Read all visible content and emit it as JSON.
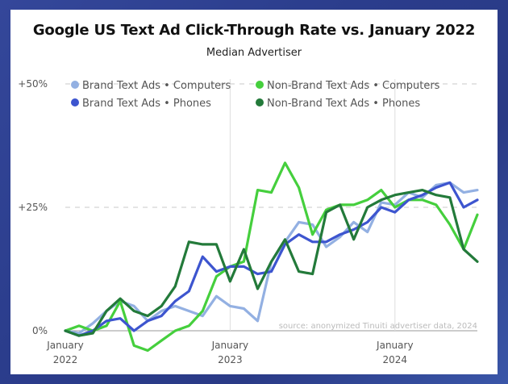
{
  "colors": {
    "brand_computers": "#93b0e2",
    "brand_phones": "#3d55cf",
    "nonbrand_computers": "#45cf3d",
    "nonbrand_phones": "#237a3a"
  },
  "chart_data": {
    "type": "line",
    "title": "Google US Text Ad Click-Through Rate vs. January 2022",
    "subtitle": "Median Advertiser",
    "xlabel": "",
    "ylabel": "",
    "ylim": [
      0,
      50
    ],
    "x_ticks": [
      {
        "index": 0,
        "line1": "January",
        "line2": "2022"
      },
      {
        "index": 12,
        "line1": "January",
        "line2": "2023"
      },
      {
        "index": 24,
        "line1": "January",
        "line2": "2024"
      }
    ],
    "y_ticks": [
      {
        "value": 0,
        "label": "0%"
      },
      {
        "value": 25,
        "label": "+25%"
      },
      {
        "value": 50,
        "label": "+50%"
      }
    ],
    "source": "source: anonymized Tinuiti advertiser data, 2024",
    "legend_position": "top-left",
    "series": [
      {
        "name": "Brand Text Ads • Computers",
        "color_key": "brand_computers",
        "values": [
          0,
          -0.5,
          1.5,
          4,
          6,
          5,
          2,
          4,
          5,
          4,
          3,
          7,
          5,
          4.5,
          2,
          14,
          18,
          22,
          21.5,
          17,
          19,
          22,
          20,
          26,
          25.5,
          28,
          27,
          29.5,
          30,
          28,
          28.5
        ]
      },
      {
        "name": "Non-Brand Text Ads • Computers",
        "color_key": "nonbrand_computers",
        "values": [
          0,
          1,
          0,
          1,
          6,
          -3,
          -4,
          -2,
          0,
          1,
          4,
          11,
          13,
          14,
          28.5,
          28,
          34,
          29,
          19.5,
          24.5,
          25.5,
          25.5,
          26.5,
          28.5,
          25,
          26.5,
          26.5,
          25.5,
          21.5,
          16.5,
          23.5
        ]
      },
      {
        "name": "Brand Text Ads • Phones",
        "color_key": "brand_phones",
        "values": [
          0,
          -1,
          0,
          2,
          2.5,
          0,
          2,
          3,
          6,
          8,
          15,
          12,
          13,
          13,
          11.5,
          12,
          17.5,
          19.5,
          18,
          18,
          19.5,
          20.5,
          22,
          25,
          24,
          26.5,
          27.5,
          29,
          30,
          25,
          26.5
        ]
      },
      {
        "name": "Non-Brand Text Ads • Phones",
        "color_key": "nonbrand_phones",
        "values": [
          0,
          -1,
          -0.5,
          4,
          6.5,
          4,
          3,
          5,
          9,
          18,
          17.5,
          17.5,
          10,
          16.5,
          8.5,
          14,
          18.5,
          12,
          11.5,
          24,
          25.5,
          18.5,
          25,
          26.5,
          27.5,
          28,
          28.5,
          27.5,
          27,
          16.5,
          14
        ]
      }
    ]
  }
}
